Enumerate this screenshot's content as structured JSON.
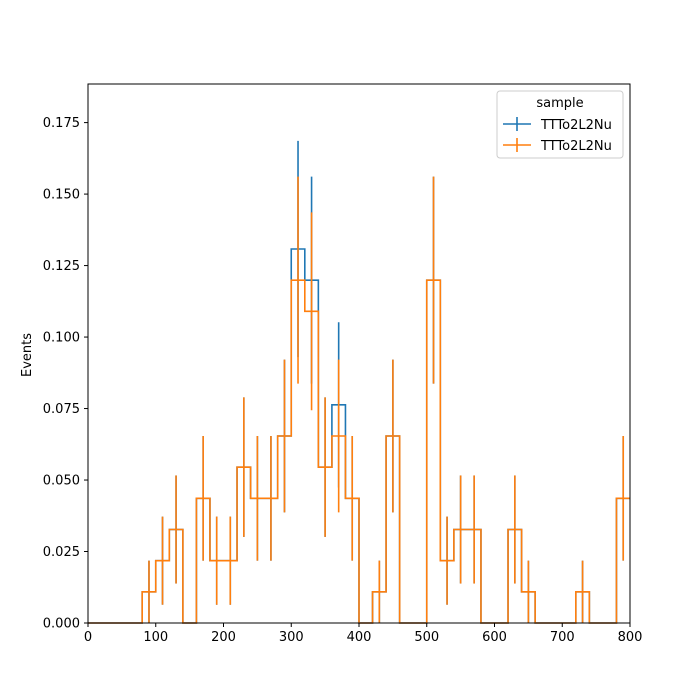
{
  "colors": {
    "series1": "#1f77b4",
    "series2": "#ff7f0e",
    "axis": "#000000",
    "legend_border": "#cccccc",
    "background": "#ffffff"
  },
  "chart_data": {
    "type": "step histogram with error bars",
    "title": "",
    "xlabel": "",
    "ylabel": "Events",
    "xlim": [
      0,
      800
    ],
    "ylim": [
      0,
      0.1885
    ],
    "grid": false,
    "legend": {
      "title": "sample",
      "placement": "top-right",
      "entries": [
        "TTTo2L2Nu",
        "TTTo2L2Nu"
      ]
    },
    "x_ticks": [
      0,
      100,
      200,
      300,
      400,
      500,
      600,
      700,
      800
    ],
    "x_tick_labels": [
      "0",
      "100",
      "200",
      "300",
      "400",
      "500",
      "600",
      "700",
      "800"
    ],
    "y_ticks": [
      0.0,
      0.025,
      0.05,
      0.075,
      0.1,
      0.125,
      0.15,
      0.175
    ],
    "y_tick_labels": [
      "0.000",
      "0.025",
      "0.050",
      "0.075",
      "0.100",
      "0.125",
      "0.150",
      "0.175"
    ],
    "bin_edges": [
      0,
      20,
      40,
      60,
      80,
      100,
      120,
      140,
      160,
      180,
      200,
      220,
      240,
      260,
      280,
      300,
      320,
      340,
      360,
      380,
      400,
      420,
      440,
      460,
      480,
      500,
      520,
      540,
      560,
      580,
      600,
      620,
      640,
      660,
      680,
      700,
      720,
      740,
      760,
      780,
      800
    ],
    "series": [
      {
        "name": "TTTo2L2Nu",
        "color": "#1f77b4",
        "values": [
          0,
          0,
          0,
          0,
          0.0109,
          0.0218,
          0.0327,
          0,
          0.0436,
          0.0218,
          0.0218,
          0.0545,
          0.0436,
          0.0436,
          0.0654,
          0.1308,
          0.1199,
          0.0545,
          0.0763,
          0.0436,
          0,
          0.0109,
          0.0654,
          0,
          0,
          0.1199,
          0.0218,
          0.0327,
          0.0327,
          0,
          0,
          0.0327,
          0.0109,
          0,
          0,
          0,
          0.0109,
          0,
          0,
          0.0436
        ],
        "errors": [
          0,
          0,
          0,
          0,
          0.0109,
          0.0154,
          0.0189,
          0,
          0.0218,
          0.0154,
          0.0154,
          0.0244,
          0.0218,
          0.0218,
          0.0267,
          0.0378,
          0.0362,
          0.0244,
          0.0289,
          0.0218,
          0,
          0.0109,
          0.0267,
          0,
          0,
          0.0362,
          0.0154,
          0.0189,
          0.0189,
          0,
          0,
          0.0189,
          0.0109,
          0,
          0,
          0,
          0.0109,
          0,
          0,
          0.0218
        ]
      },
      {
        "name": "TTTo2L2Nu",
        "color": "#ff7f0e",
        "values": [
          0,
          0,
          0,
          0,
          0.0109,
          0.0218,
          0.0327,
          0,
          0.0436,
          0.0218,
          0.0218,
          0.0545,
          0.0436,
          0.0436,
          0.0654,
          0.1199,
          0.109,
          0.0545,
          0.0654,
          0.0436,
          0,
          0.0109,
          0.0654,
          0,
          0,
          0.1199,
          0.0218,
          0.0327,
          0.0327,
          0,
          0,
          0.0327,
          0.0109,
          0,
          0,
          0,
          0.0109,
          0,
          0,
          0.0436
        ],
        "errors": [
          0,
          0,
          0,
          0,
          0.0109,
          0.0154,
          0.0189,
          0,
          0.0218,
          0.0154,
          0.0154,
          0.0244,
          0.0218,
          0.0218,
          0.0267,
          0.0362,
          0.0346,
          0.0244,
          0.0267,
          0.0218,
          0,
          0.0109,
          0.0267,
          0,
          0,
          0.0362,
          0.0154,
          0.0189,
          0.0189,
          0,
          0,
          0.0189,
          0.0109,
          0,
          0,
          0,
          0.0109,
          0,
          0,
          0.0218
        ]
      }
    ]
  }
}
